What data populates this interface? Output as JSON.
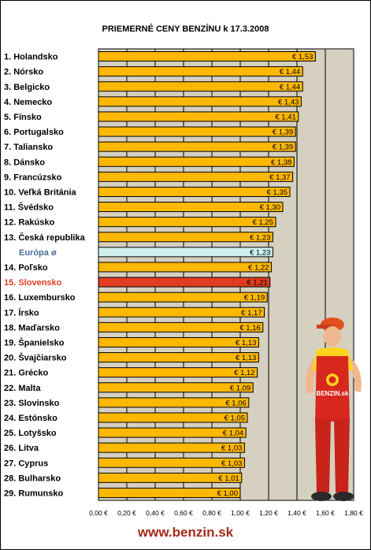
{
  "chart_data": {
    "type": "bar",
    "orientation": "horizontal",
    "title": "PRIEMERNÉ CENY BENZÍNU k 17.3.2008",
    "categories": [
      "1. Holandsko",
      "2. Nórsko",
      "3. Belgicko",
      "4. Nemecko",
      "5. Fínsko",
      "6. Portugalsko",
      "7. Taliansko",
      "8. Dánsko",
      "9. Francúzsko",
      "10. Veľká Británia",
      "11. Švédsko",
      "12. Rakúsko",
      "13. Česká republika",
      "Európa ø",
      "14. Poľsko",
      "15. Slovensko",
      "16. Luxembursko",
      "17. Írsko",
      "18. Maďarsko",
      "19. Španielsko",
      "20. Švajčiarsko",
      "21. Grécko",
      "22. Malta",
      "23. Slovinsko",
      "24. Estónsko",
      "25. Lotyšsko",
      "26. Litva",
      "27. Cyprus",
      "28. Bulharsko",
      "29. Rumunsko"
    ],
    "values": [
      1.53,
      1.44,
      1.44,
      1.43,
      1.41,
      1.39,
      1.39,
      1.38,
      1.37,
      1.35,
      1.3,
      1.25,
      1.23,
      1.23,
      1.22,
      1.21,
      1.19,
      1.17,
      1.16,
      1.13,
      1.13,
      1.12,
      1.09,
      1.06,
      1.05,
      1.04,
      1.03,
      1.03,
      1.01,
      1.0
    ],
    "value_labels": [
      "€ 1,53",
      "€ 1,44",
      "€ 1,44",
      "€ 1,43",
      "€ 1,41",
      "€ 1,39",
      "€ 1,39",
      "€ 1,38",
      "€ 1,37",
      "€ 1,35",
      "€ 1,30",
      "€ 1,25",
      "€ 1,23",
      "€ 1,23",
      "€ 1,22",
      "€ 1,21",
      "€ 1,19",
      "€ 1,17",
      "€ 1,16",
      "€ 1,13",
      "€ 1,13",
      "€ 1,12",
      "€ 1,09",
      "€ 1,06",
      "€ 1,05",
      "€ 1,04",
      "€ 1,03",
      "€ 1,03",
      "€ 1,01",
      "€ 1,00"
    ],
    "highlight": {
      "Európa ø": {
        "bar": "#cdf0ec",
        "label": "#4a6f9a"
      },
      "15. Slovensko": {
        "bar": "#e23c20",
        "label": "#e23c20"
      }
    },
    "xlim": [
      0,
      1.8
    ],
    "x_ticks": [
      0,
      0.2,
      0.4,
      0.6,
      0.8,
      1.0,
      1.2,
      1.4,
      1.6,
      1.8
    ],
    "x_tick_labels": [
      "0,00 €",
      "0,20 €",
      "0,40 €",
      "0,60 €",
      "0,80 €",
      "1,00 €",
      "1,20 €",
      "1,40 €",
      "1,60 €",
      "1,80 €"
    ],
    "grid": "vertical",
    "colors": {
      "bar": "#ffb800",
      "plot_background": "#d6d0c0",
      "gridline": "#000000"
    }
  },
  "footer": {
    "website": "www.benzin.sk"
  },
  "mascot": {
    "logo_text": "BENZIN.sk"
  }
}
